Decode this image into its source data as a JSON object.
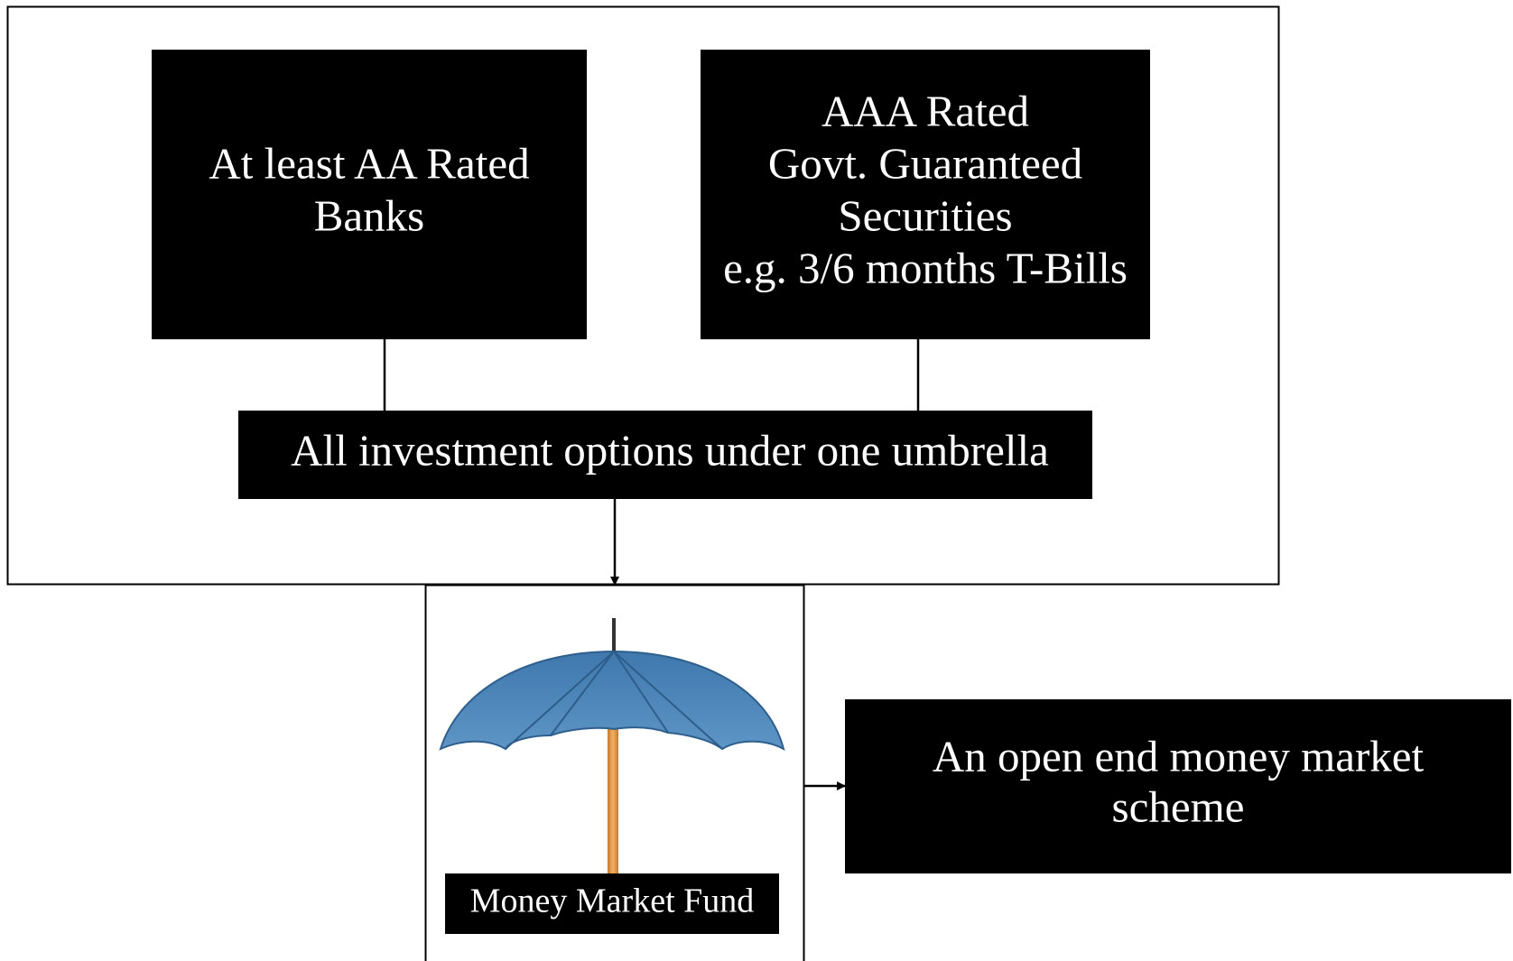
{
  "nodes": [
    {
      "lines": [
        "At least AA Rated",
        "Banks"
      ]
    },
    {
      "lines": [
        "AAA Rated",
        "Govt. Guaranteed",
        "Securities",
        "e.g. 3/6 months T-Bills"
      ]
    },
    {
      "lines": [
        "All investment options under one umbrella"
      ]
    },
    {
      "lines": [
        "Money Market Fund"
      ]
    },
    {
      "lines": [
        "An open end money market",
        "scheme"
      ]
    }
  ]
}
